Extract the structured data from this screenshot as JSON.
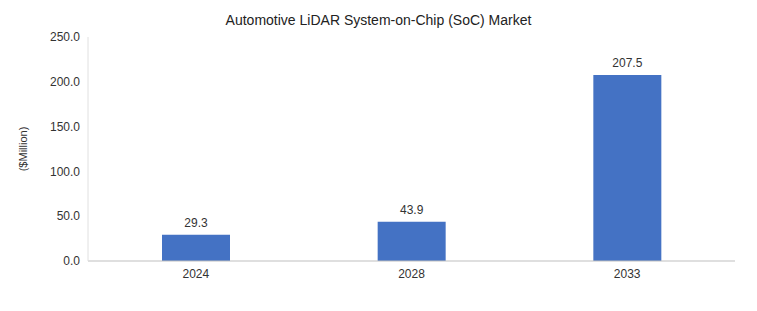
{
  "chart_data": {
    "type": "bar",
    "title": "Automotive LiDAR System-on-Chip (SoC) Market",
    "y_label": "($Million)",
    "categories": [
      "2024",
      "2028",
      "2033"
    ],
    "values": [
      29.3,
      43.9,
      207.5
    ],
    "color": "#4472c4",
    "ylim": [
      0,
      250
    ],
    "yticks": [
      {
        "value": 0,
        "label": "0.0"
      },
      {
        "value": 50,
        "label": "50.0"
      },
      {
        "value": 100,
        "label": "100.0"
      },
      {
        "value": 150,
        "label": "150.0"
      },
      {
        "value": 200,
        "label": "200.0"
      },
      {
        "value": 250,
        "label": "250.0"
      }
    ],
    "grid": false,
    "data_labels": true
  }
}
